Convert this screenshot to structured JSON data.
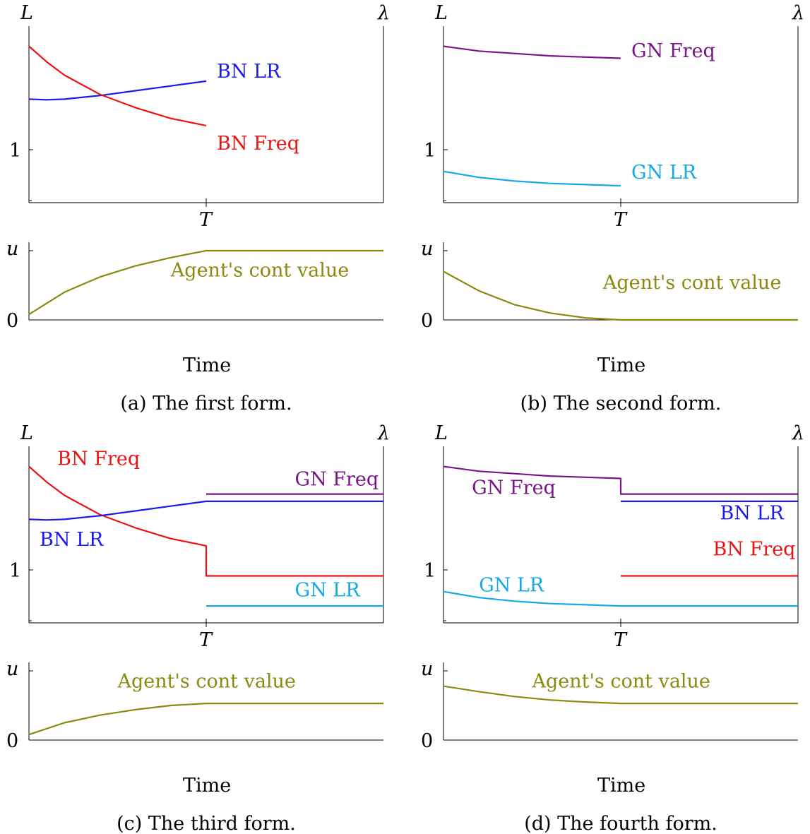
{
  "colors": {
    "red": "#ee1111",
    "blue": "#1a1af0",
    "purple": "#7a1488",
    "cyan": "#12a9e6",
    "olive": "#8a8a0c"
  },
  "chart_data": [
    {
      "type": "line",
      "caption": "(a) The first form.",
      "left_axis_label": "L",
      "right_axis_label": "λ",
      "x_tick_label": "T",
      "y_tick_label": "1",
      "bottom_axis_label": "u",
      "bottom_zero_label": "0",
      "xlabel": "Time",
      "ylim": [
        0.56,
        1.98
      ],
      "series": [
        {
          "name": "BN LR",
          "color": "blue",
          "label_x": 0.53,
          "label_y": 1.6,
          "points": [
            [
              0,
              1.42
            ],
            [
              0.05,
              1.415
            ],
            [
              0.1,
              1.42
            ],
            [
              0.2,
              1.45
            ],
            [
              0.3,
              1.49
            ],
            [
              0.4,
              1.53
            ],
            [
              0.5,
              1.57
            ]
          ]
        },
        {
          "name": "BN Freq",
          "color": "red",
          "label_x": 0.53,
          "label_y": 1.0,
          "points": [
            [
              0,
              1.86
            ],
            [
              0.05,
              1.73
            ],
            [
              0.1,
              1.62
            ],
            [
              0.2,
              1.46
            ],
            [
              0.3,
              1.35
            ],
            [
              0.4,
              1.26
            ],
            [
              0.5,
              1.2
            ]
          ]
        }
      ],
      "bottom_series": {
        "name": "Agent's cont value",
        "color": "olive",
        "label_x": 0.4,
        "label_y": 0.63,
        "points": [
          [
            0,
            0.08
          ],
          [
            0.1,
            0.4
          ],
          [
            0.2,
            0.62
          ],
          [
            0.3,
            0.78
          ],
          [
            0.4,
            0.9
          ],
          [
            0.5,
            1.0
          ],
          [
            1.0,
            1.0
          ]
        ]
      }
    },
    {
      "type": "line",
      "caption": "(b) The second form.",
      "left_axis_label": "L",
      "right_axis_label": "λ",
      "x_tick_label": "T",
      "y_tick_label": "1",
      "bottom_axis_label": "u",
      "bottom_zero_label": "0",
      "xlabel": "Time",
      "ylim": [
        0.56,
        1.98
      ],
      "series": [
        {
          "name": "GN Freq",
          "color": "purple",
          "label_x": 0.53,
          "label_y": 1.77,
          "points": [
            [
              0,
              1.86
            ],
            [
              0.1,
              1.82
            ],
            [
              0.2,
              1.8
            ],
            [
              0.3,
              1.78
            ],
            [
              0.4,
              1.77
            ],
            [
              0.5,
              1.76
            ]
          ]
        },
        {
          "name": "GN LR",
          "color": "cyan",
          "label_x": 0.53,
          "label_y": 0.76,
          "points": [
            [
              0,
              0.82
            ],
            [
              0.1,
              0.77
            ],
            [
              0.2,
              0.74
            ],
            [
              0.3,
              0.72
            ],
            [
              0.4,
              0.71
            ],
            [
              0.5,
              0.7
            ]
          ]
        }
      ],
      "bottom_series": {
        "name": "Agent's cont value",
        "color": "olive",
        "label_x": 0.45,
        "label_y": 0.45,
        "points": [
          [
            0,
            0.7
          ],
          [
            0.1,
            0.42
          ],
          [
            0.2,
            0.22
          ],
          [
            0.3,
            0.1
          ],
          [
            0.4,
            0.03
          ],
          [
            0.5,
            0.0
          ],
          [
            1.0,
            0.0
          ]
        ]
      }
    },
    {
      "type": "line",
      "caption": "(c) The third form.",
      "left_axis_label": "L",
      "right_axis_label": "λ",
      "x_tick_label": "T",
      "y_tick_label": "1",
      "bottom_axis_label": "u",
      "bottom_zero_label": "0",
      "xlabel": "Time",
      "ylim": [
        0.56,
        1.98
      ],
      "series": [
        {
          "name": "BN Freq",
          "color": "red",
          "label_x": 0.08,
          "label_y": 1.87,
          "points": [
            [
              0,
              1.86
            ],
            [
              0.05,
              1.73
            ],
            [
              0.1,
              1.62
            ],
            [
              0.2,
              1.46
            ],
            [
              0.3,
              1.35
            ],
            [
              0.4,
              1.26
            ],
            [
              0.5,
              1.2
            ],
            [
              0.5,
              0.95
            ],
            [
              1.0,
              0.95
            ]
          ]
        },
        {
          "name": "BN LR",
          "color": "blue",
          "label_x": 0.03,
          "label_y": 1.2,
          "points": [
            [
              0,
              1.42
            ],
            [
              0.05,
              1.415
            ],
            [
              0.1,
              1.42
            ],
            [
              0.2,
              1.45
            ],
            [
              0.3,
              1.49
            ],
            [
              0.4,
              1.53
            ],
            [
              0.5,
              1.57
            ],
            [
              1.0,
              1.57
            ]
          ]
        },
        {
          "name": "GN Freq",
          "color": "purple",
          "label_x": 0.75,
          "label_y": 1.7,
          "points": [
            [
              0.5,
              1.63
            ],
            [
              1.0,
              1.63
            ]
          ]
        },
        {
          "name": "GN LR",
          "color": "cyan",
          "label_x": 0.75,
          "label_y": 0.78,
          "points": [
            [
              0.5,
              0.7
            ],
            [
              1.0,
              0.7
            ]
          ]
        }
      ],
      "bottom_series": {
        "name": "Agent's cont value",
        "color": "olive",
        "label_x": 0.25,
        "label_y": 0.76,
        "points": [
          [
            0,
            0.08
          ],
          [
            0.1,
            0.25
          ],
          [
            0.2,
            0.36
          ],
          [
            0.3,
            0.44
          ],
          [
            0.4,
            0.5
          ],
          [
            0.5,
            0.53
          ],
          [
            1.0,
            0.53
          ]
        ]
      }
    },
    {
      "type": "line",
      "caption": "(d) The fourth form.",
      "left_axis_label": "L",
      "right_axis_label": "λ",
      "x_tick_label": "T",
      "y_tick_label": "1",
      "bottom_axis_label": "u",
      "bottom_zero_label": "0",
      "xlabel": "Time",
      "ylim": [
        0.56,
        1.98
      ],
      "series": [
        {
          "name": "GN Freq",
          "color": "purple",
          "label_x": 0.08,
          "label_y": 1.63,
          "points": [
            [
              0,
              1.86
            ],
            [
              0.1,
              1.82
            ],
            [
              0.2,
              1.8
            ],
            [
              0.3,
              1.78
            ],
            [
              0.4,
              1.77
            ],
            [
              0.5,
              1.76
            ],
            [
              0.5,
              1.63
            ],
            [
              1.0,
              1.63
            ]
          ]
        },
        {
          "name": "BN LR",
          "color": "blue",
          "label_x": 0.78,
          "label_y": 1.42,
          "points": [
            [
              0.5,
              1.57
            ],
            [
              1.0,
              1.57
            ]
          ]
        },
        {
          "name": "BN Freq",
          "color": "red",
          "label_x": 0.76,
          "label_y": 1.12,
          "points": [
            [
              0.5,
              0.95
            ],
            [
              1.0,
              0.95
            ]
          ]
        },
        {
          "name": "GN LR",
          "color": "cyan",
          "label_x": 0.1,
          "label_y": 0.82,
          "points": [
            [
              0,
              0.82
            ],
            [
              0.1,
              0.77
            ],
            [
              0.2,
              0.74
            ],
            [
              0.3,
              0.72
            ],
            [
              0.4,
              0.71
            ],
            [
              0.5,
              0.7
            ],
            [
              1.0,
              0.7
            ]
          ]
        }
      ],
      "bottom_series": {
        "name": "Agent's cont value",
        "color": "olive",
        "label_x": 0.25,
        "label_y": 0.76,
        "points": [
          [
            0,
            0.78
          ],
          [
            0.1,
            0.7
          ],
          [
            0.2,
            0.63
          ],
          [
            0.3,
            0.58
          ],
          [
            0.4,
            0.55
          ],
          [
            0.5,
            0.53
          ],
          [
            1.0,
            0.53
          ]
        ]
      }
    }
  ]
}
